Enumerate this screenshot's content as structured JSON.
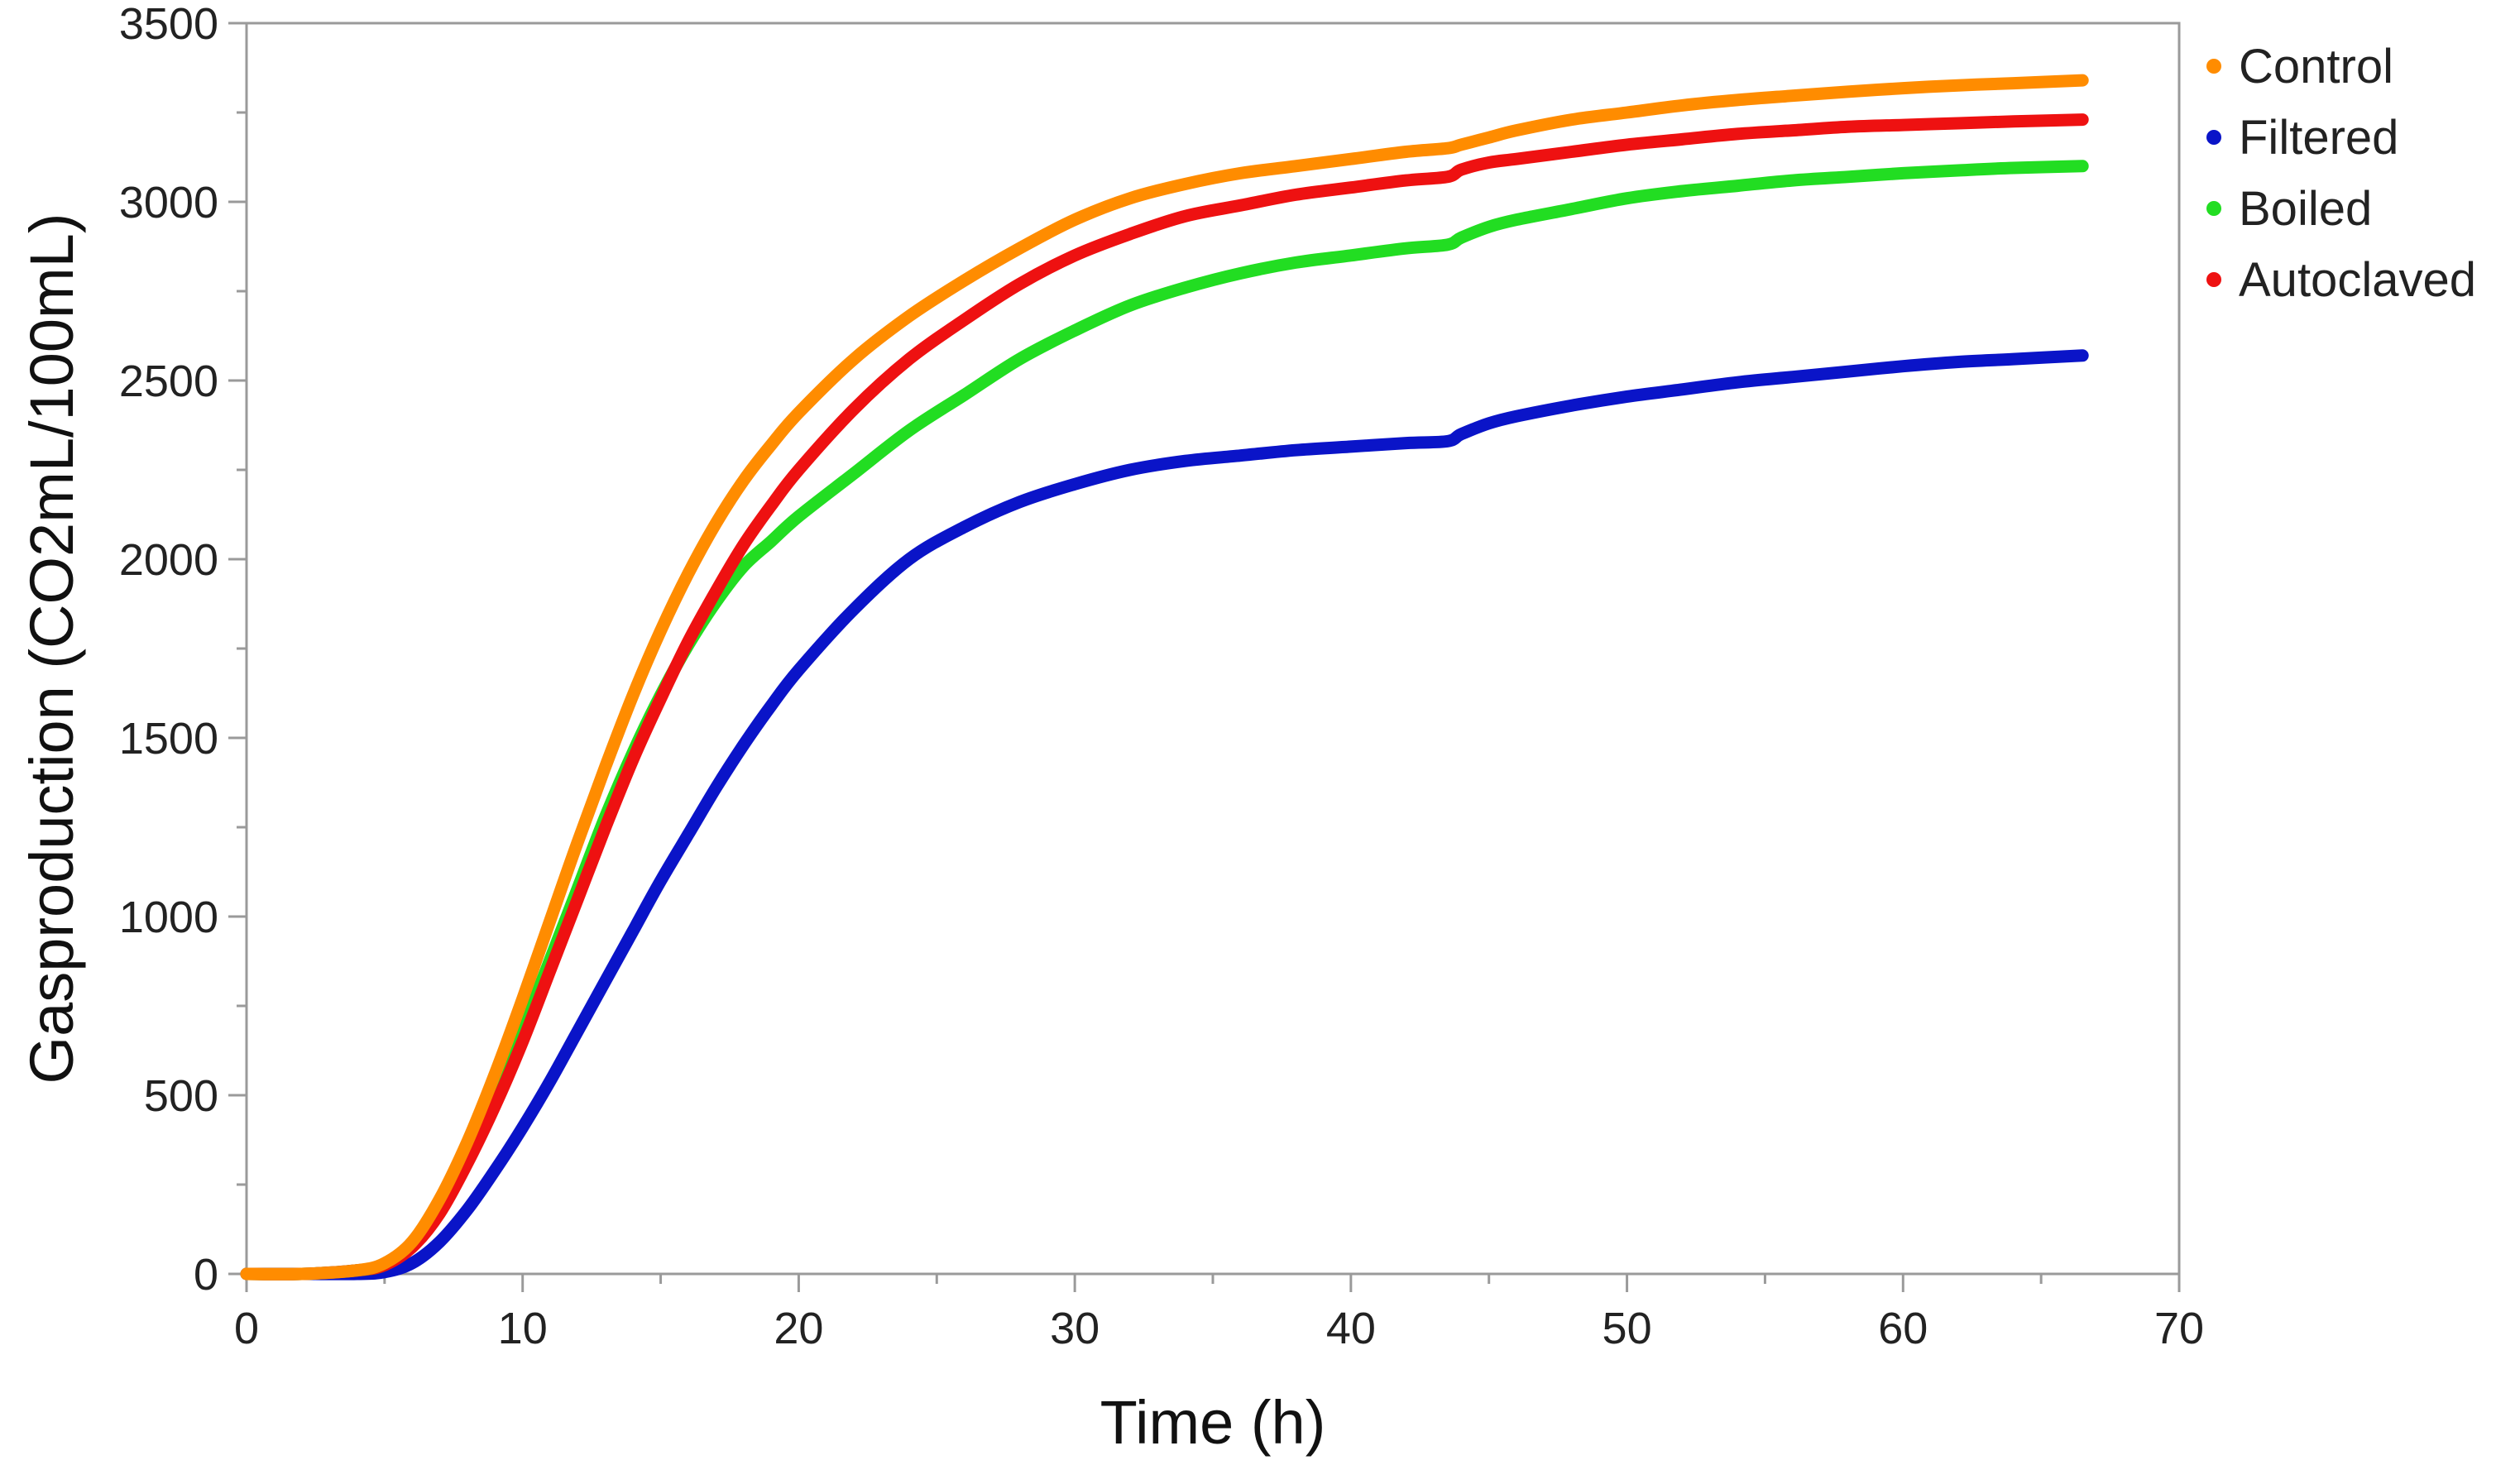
{
  "chart_data": {
    "type": "line",
    "title": "",
    "xlabel": "Time (h)",
    "ylabel": "Gasproduction (CO2mL/100mL)",
    "xlim": [
      0,
      70
    ],
    "ylim": [
      0,
      3500
    ],
    "xticks": [
      0,
      10,
      20,
      30,
      40,
      50,
      60,
      70
    ],
    "yticks": [
      0,
      500,
      1000,
      1500,
      2000,
      2500,
      3000,
      3500
    ],
    "grid": false,
    "legend_position": "top-right-outside",
    "x": [
      0,
      2,
      4,
      5,
      6,
      7,
      8,
      9,
      10,
      11,
      12,
      13,
      14,
      15,
      16,
      17,
      18,
      19,
      20,
      22,
      24,
      26,
      28,
      30,
      32,
      34,
      36,
      38,
      40,
      42,
      43.5,
      44,
      45,
      46,
      48,
      50,
      52,
      54,
      56,
      58,
      60,
      62,
      64,
      66.5
    ],
    "series": [
      {
        "name": "Control",
        "color": "#FF8C00",
        "values": [
          0,
          0,
          10,
          30,
          90,
          210,
          370,
          560,
          770,
          990,
          1210,
          1420,
          1620,
          1800,
          1960,
          2100,
          2220,
          2320,
          2410,
          2560,
          2680,
          2780,
          2870,
          2950,
          3010,
          3050,
          3080,
          3100,
          3120,
          3140,
          3150,
          3160,
          3180,
          3200,
          3230,
          3250,
          3270,
          3285,
          3297,
          3308,
          3318,
          3326,
          3332,
          3340
        ]
      },
      {
        "name": "Filtered",
        "color": "#0A14C8",
        "values": [
          0,
          0,
          0,
          5,
          30,
          90,
          180,
          290,
          410,
          540,
          680,
          820,
          960,
          1100,
          1230,
          1360,
          1480,
          1590,
          1690,
          1860,
          2000,
          2090,
          2160,
          2210,
          2250,
          2275,
          2290,
          2305,
          2315,
          2325,
          2330,
          2350,
          2380,
          2400,
          2430,
          2455,
          2475,
          2495,
          2510,
          2525,
          2540,
          2552,
          2560,
          2570
        ]
      },
      {
        "name": "Boiled",
        "color": "#22DD22",
        "values": [
          0,
          0,
          10,
          25,
          80,
          180,
          320,
          490,
          680,
          880,
          1080,
          1280,
          1460,
          1620,
          1760,
          1880,
          1980,
          2050,
          2120,
          2240,
          2360,
          2460,
          2560,
          2640,
          2710,
          2760,
          2800,
          2830,
          2850,
          2870,
          2880,
          2900,
          2930,
          2950,
          2980,
          3010,
          3030,
          3045,
          3060,
          3070,
          3080,
          3088,
          3095,
          3100
        ]
      },
      {
        "name": "Autoclaved",
        "color": "#EE1111",
        "values": [
          0,
          0,
          10,
          25,
          75,
          170,
          310,
          470,
          650,
          850,
          1050,
          1250,
          1440,
          1610,
          1770,
          1910,
          2040,
          2150,
          2250,
          2420,
          2560,
          2670,
          2770,
          2850,
          2910,
          2960,
          2990,
          3020,
          3040,
          3060,
          3070,
          3090,
          3110,
          3120,
          3140,
          3160,
          3175,
          3190,
          3200,
          3210,
          3215,
          3220,
          3225,
          3230
        ]
      }
    ]
  }
}
